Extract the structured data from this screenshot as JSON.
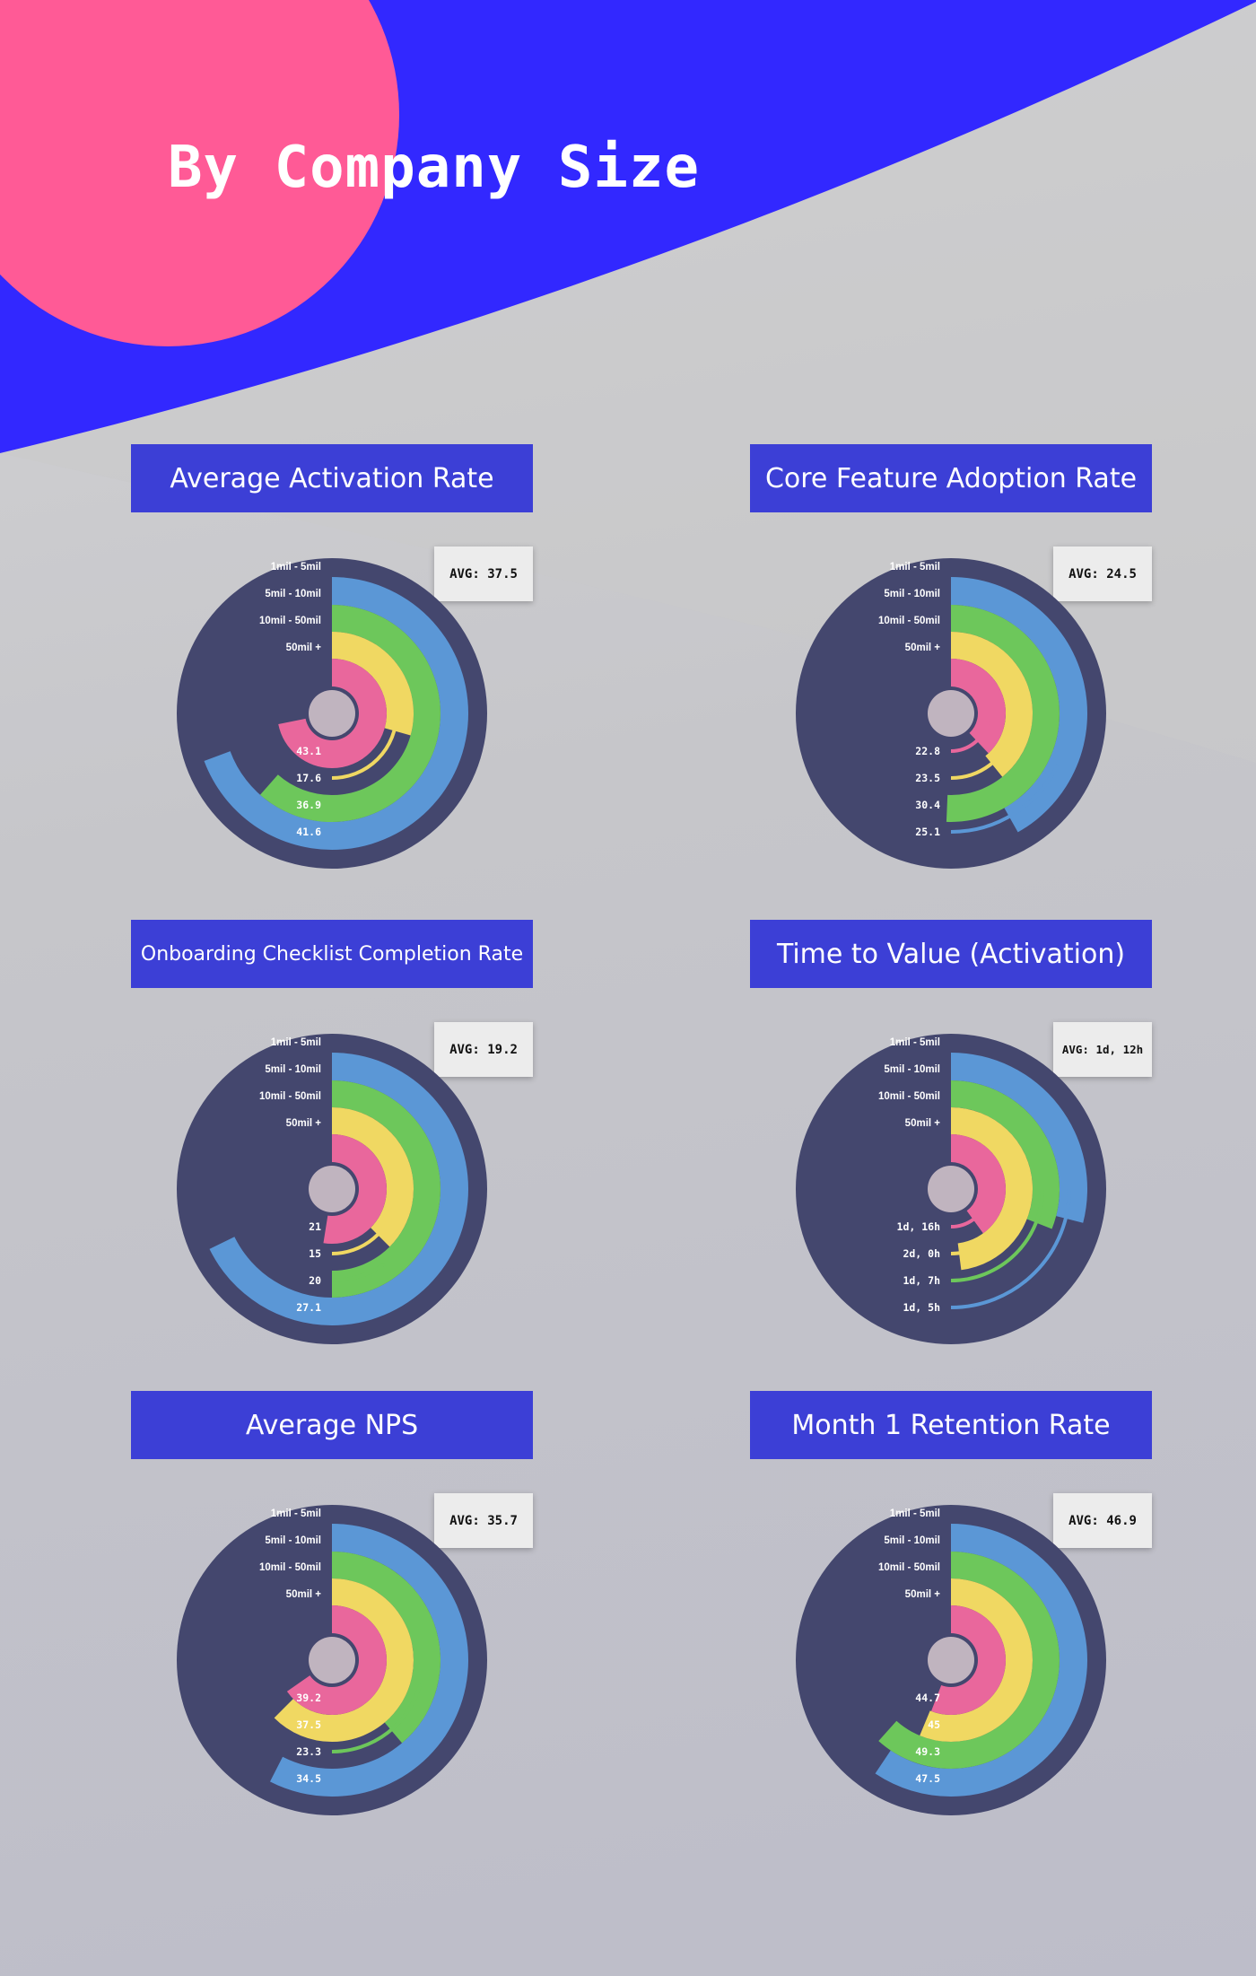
{
  "page": {
    "title": "By Company Size"
  },
  "colors": {
    "background_blue": "#3228ff",
    "background_pink": "#ff5a96",
    "header_blue": "#3c3fd6",
    "disc": "#44476e",
    "hub": "#c0b4bf",
    "series": [
      "#5b97d6",
      "#6dc75b",
      "#f0d862",
      "#e9679c"
    ]
  },
  "chart_data": [
    {
      "type": "radial-bar",
      "title": "Average Activation Rate",
      "avg_label": "AVG: 37.5",
      "categories": [
        "1mil - 5mil",
        "5mil - 10mil",
        "10mil - 50mil",
        "50mil +"
      ],
      "value_labels": [
        "43.1",
        "17.6",
        "36.9",
        "41.6"
      ],
      "bar_values": [
        41.6,
        36.9,
        17.6,
        43.1
      ],
      "scale_max": 60
    },
    {
      "type": "radial-bar",
      "title": "Core Feature Adoption Rate",
      "avg_label": "AVG: 24.5",
      "categories": [
        "1mil - 5mil",
        "5mil - 10mil",
        "10mil - 50mil",
        "50mil +"
      ],
      "value_labels": [
        "22.8",
        "23.5",
        "30.4",
        "25.1"
      ],
      "bar_values": [
        25.1,
        30.4,
        23.5,
        22.8
      ],
      "scale_max": 60
    },
    {
      "type": "radial-bar",
      "title": "Onboarding Checklist Completion Rate",
      "avg_label": "AVG: 19.2",
      "categories": [
        "1mil - 5mil",
        "5mil - 10mil",
        "10mil - 50mil",
        "50mil +"
      ],
      "value_labels": [
        "21",
        "15",
        "20",
        "27.1"
      ],
      "bar_values": [
        27.1,
        20,
        15,
        21
      ],
      "scale_max": 40
    },
    {
      "type": "radial-bar",
      "title": "Time to Value (Activation)",
      "avg_label": "AVG: 1d, 12h",
      "categories": [
        "1mil - 5mil",
        "5mil - 10mil",
        "10mil - 50mil",
        "50mil +"
      ],
      "value_labels": [
        "1d, 16h",
        "2d, 0h",
        "1d, 7h",
        "1d, 5h"
      ],
      "bar_values": [
        29,
        31,
        48,
        40
      ],
      "scale_max": 100
    },
    {
      "type": "radial-bar",
      "title": "Average NPS",
      "avg_label": "AVG: 35.7",
      "categories": [
        "1mil - 5mil",
        "5mil - 10mil",
        "10mil - 50mil",
        "50mil +"
      ],
      "value_labels": [
        "39.2",
        "37.5",
        "23.3",
        "34.5"
      ],
      "bar_values": [
        34.5,
        23.3,
        37.5,
        39.2
      ],
      "scale_max": 60
    },
    {
      "type": "radial-bar",
      "title": "Month 1 Retention Rate",
      "avg_label": "AVG: 46.9",
      "categories": [
        "1mil - 5mil",
        "5mil - 10mil",
        "10mil - 50mil",
        "50mil +"
      ],
      "value_labels": [
        "44.7",
        "45",
        "49.3",
        "47.5"
      ],
      "bar_values": [
        47.5,
        49.3,
        45,
        44.7
      ],
      "scale_max": 80
    }
  ]
}
